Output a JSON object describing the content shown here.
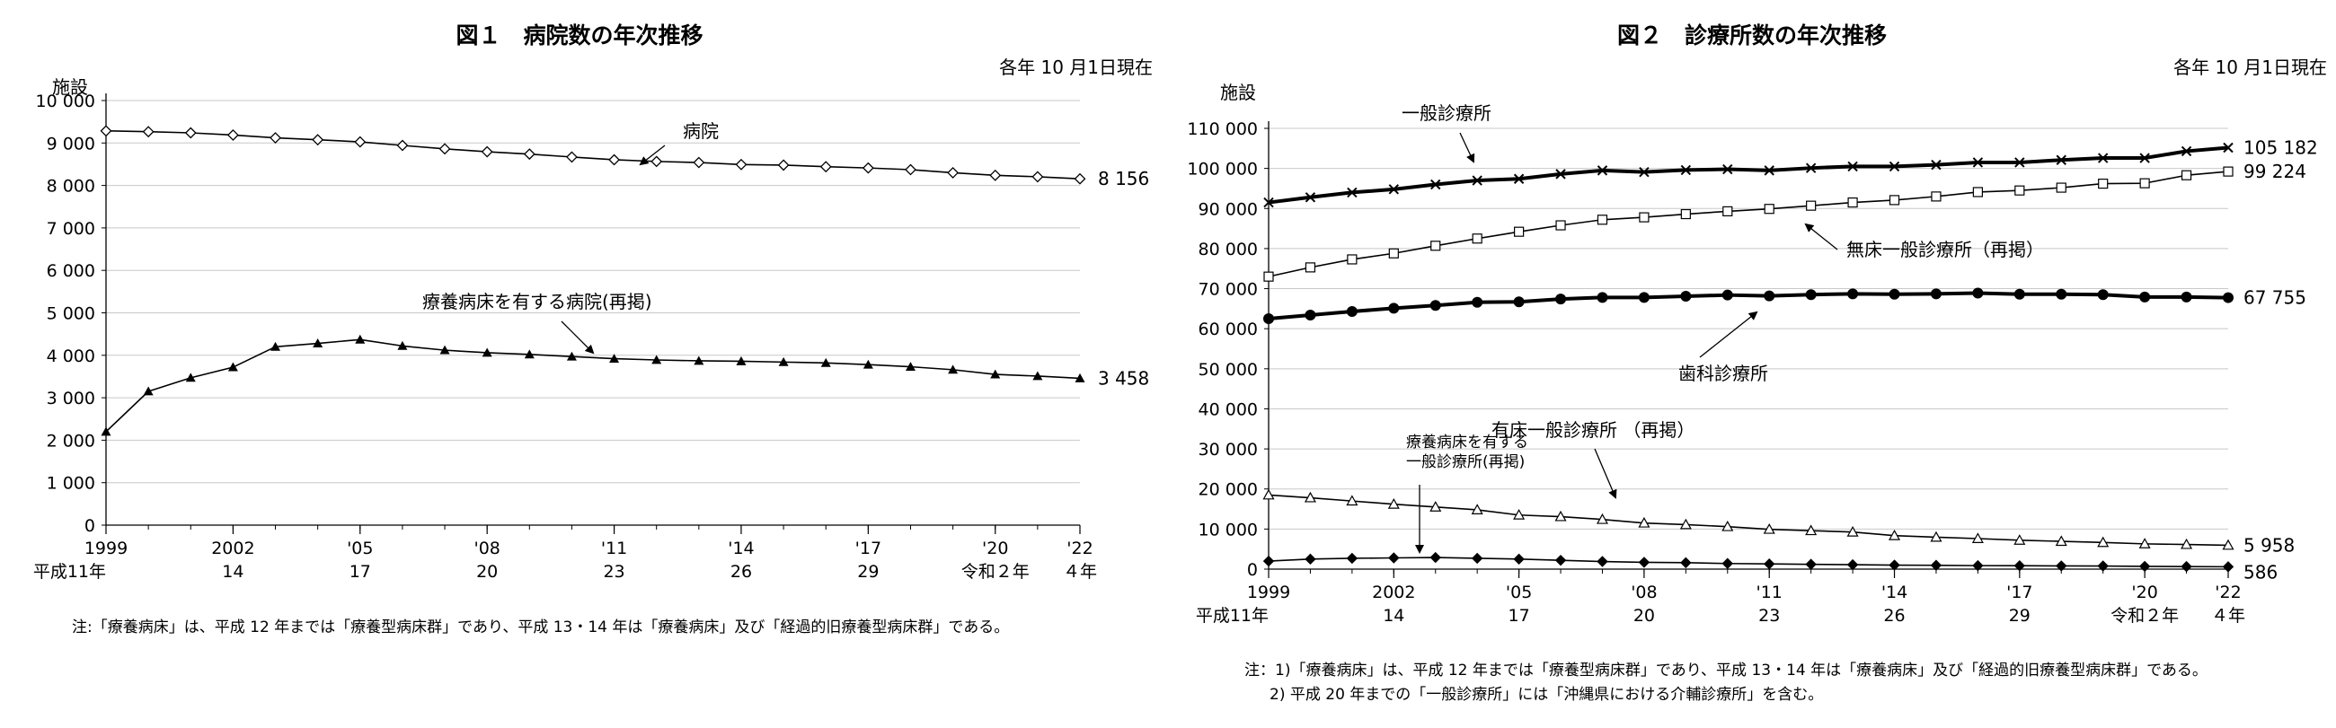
{
  "charts": [
    {
      "title": "図１　病院数の年次推移",
      "date_note": "各年 10 月1日現在",
      "y_unit": "施設",
      "note": "注:「療養病床」は、平成 12 年までは「療養型病床群」であり、平成 13・14 年は「療養病床」及び「経過的旧療養型病床群」である。",
      "x_ticks": [
        {
          "year": 1999,
          "label": "1999",
          "sub": "平成11年"
        },
        {
          "year": 2002,
          "label": "2002",
          "sub": "14"
        },
        {
          "year": 2005,
          "label": "'05",
          "sub": "17"
        },
        {
          "year": 2008,
          "label": "'08",
          "sub": "20"
        },
        {
          "year": 2011,
          "label": "'11",
          "sub": "23"
        },
        {
          "year": 2014,
          "label": "'14",
          "sub": "26"
        },
        {
          "year": 2017,
          "label": "'17",
          "sub": "29"
        },
        {
          "year": 2020,
          "label": "'20",
          "sub": "令和２年"
        },
        {
          "year": 2022,
          "label": "'22",
          "sub": "４年"
        }
      ],
      "y_ticks": [
        {
          "v": 0,
          "label": "0"
        },
        {
          "v": 1000,
          "label": "1 000"
        },
        {
          "v": 2000,
          "label": "2 000"
        },
        {
          "v": 3000,
          "label": "3 000"
        },
        {
          "v": 4000,
          "label": "4 000"
        },
        {
          "v": 5000,
          "label": "5 000"
        },
        {
          "v": 6000,
          "label": "6 000"
        },
        {
          "v": 7000,
          "label": "7 000"
        },
        {
          "v": 8000,
          "label": "8 000"
        },
        {
          "v": 9000,
          "label": "9 000"
        },
        {
          "v": 10000,
          "label": "10 000"
        }
      ],
      "annotations": [
        {
          "text": "病院",
          "series": 0,
          "year": 2011
        },
        {
          "text": "療養病床を有する病院(再掲)",
          "series": 1,
          "year": 2010
        }
      ]
    },
    {
      "title": "図２　診療所数の年次推移",
      "date_note": "各年 10 月1日現在",
      "y_unit": "施設",
      "note_lines": [
        "注：1)「療養病床」は、平成 12 年までは「療養型病床群」であり、平成 13・14 年は「療養病床」及び「経過的旧療養型病床群」である。",
        "2) 平成 20 年までの「一般診療所」には「沖縄県における介輔診療所」を含む。"
      ],
      "x_ticks": [
        {
          "year": 1999,
          "label": "1999",
          "sub": "平成11年"
        },
        {
          "year": 2002,
          "label": "2002",
          "sub": "14"
        },
        {
          "year": 2005,
          "label": "'05",
          "sub": "17"
        },
        {
          "year": 2008,
          "label": "'08",
          "sub": "20"
        },
        {
          "year": 2011,
          "label": "'11",
          "sub": "23"
        },
        {
          "year": 2014,
          "label": "'14",
          "sub": "26"
        },
        {
          "year": 2017,
          "label": "'17",
          "sub": "29"
        },
        {
          "year": 2020,
          "label": "'20",
          "sub": "令和２年"
        },
        {
          "year": 2022,
          "label": "'22",
          "sub": "４年"
        }
      ],
      "y_ticks": [
        {
          "v": 0,
          "label": "0"
        },
        {
          "v": 10000,
          "label": "10 000"
        },
        {
          "v": 20000,
          "label": "20 000"
        },
        {
          "v": 30000,
          "label": "30 000"
        },
        {
          "v": 40000,
          "label": "40 000"
        },
        {
          "v": 50000,
          "label": "50 000"
        },
        {
          "v": 60000,
          "label": "60 000"
        },
        {
          "v": 70000,
          "label": "70 000"
        },
        {
          "v": 80000,
          "label": "80 000"
        },
        {
          "v": 90000,
          "label": "90 000"
        },
        {
          "v": 100000,
          "label": "100 000"
        },
        {
          "v": 110000,
          "label": "110 000"
        }
      ],
      "annotations": [
        {
          "text": "一般診療所",
          "series": 0,
          "year": 2004
        },
        {
          "text": "無床一般診療所（再掲）",
          "series": 1,
          "year": 2012
        },
        {
          "text": "歯科診療所",
          "series": 2,
          "year": 2011
        },
        {
          "text": "有床一般診療所 （再掲）",
          "series": 3,
          "year": 2010
        },
        {
          "text": "療養病床を有する\n一般診療所(再掲)",
          "series": 4,
          "year": 2003
        }
      ]
    }
  ],
  "chart_data": [
    {
      "type": "line",
      "title": "図１　病院数の年次推移",
      "ylabel": "施設",
      "xlabel": "",
      "x": [
        1999,
        2000,
        2001,
        2002,
        2003,
        2004,
        2005,
        2006,
        2007,
        2008,
        2009,
        2010,
        2011,
        2012,
        2013,
        2014,
        2015,
        2016,
        2017,
        2018,
        2019,
        2020,
        2021,
        2022
      ],
      "ylim": [
        0,
        10000
      ],
      "grid": true,
      "series": [
        {
          "name": "病院",
          "marker": "diamond-open",
          "values": [
            9286,
            9266,
            9239,
            9187,
            9122,
            9077,
            9026,
            8943,
            8862,
            8794,
            8739,
            8670,
            8605,
            8565,
            8540,
            8493,
            8480,
            8442,
            8412,
            8372,
            8300,
            8238,
            8205,
            8156
          ],
          "end_label": "8 156"
        },
        {
          "name": "療養病床を有する病院(再掲)",
          "marker": "triangle-filled",
          "values": [
            2200,
            3150,
            3470,
            3720,
            4200,
            4280,
            4370,
            4220,
            4120,
            4060,
            4020,
            3970,
            3920,
            3890,
            3870,
            3860,
            3840,
            3820,
            3780,
            3730,
            3660,
            3550,
            3510,
            3458
          ],
          "end_label": "3 458"
        }
      ]
    },
    {
      "type": "line",
      "title": "図２　診療所数の年次推移",
      "ylabel": "施設",
      "xlabel": "",
      "x": [
        1999,
        2000,
        2001,
        2002,
        2003,
        2004,
        2005,
        2006,
        2007,
        2008,
        2009,
        2010,
        2011,
        2012,
        2013,
        2014,
        2015,
        2016,
        2017,
        2018,
        2019,
        2020,
        2021,
        2022
      ],
      "ylim": [
        0,
        110000
      ],
      "grid": true,
      "series": [
        {
          "name": "一般診療所",
          "marker": "x",
          "values": [
            91500,
            92800,
            94000,
            94800,
            96000,
            97000,
            97400,
            98600,
            99500,
            99100,
            99600,
            99800,
            99500,
            100100,
            100500,
            100500,
            100900,
            101500,
            101500,
            102100,
            102600,
            102600,
            104300,
            105182
          ],
          "end_label": "105 182"
        },
        {
          "name": "無床一般診療所（再掲）",
          "marker": "square-open",
          "values": [
            73000,
            75300,
            77300,
            78800,
            80700,
            82500,
            84200,
            85800,
            87200,
            87800,
            88600,
            89300,
            89900,
            90700,
            91500,
            92100,
            93000,
            94100,
            94500,
            95200,
            96200,
            96300,
            98300,
            99224
          ],
          "end_label": "99 224"
        },
        {
          "name": "歯科診療所",
          "marker": "circle-filled",
          "values": [
            62500,
            63400,
            64300,
            65100,
            65800,
            66600,
            66700,
            67400,
            67800,
            67800,
            68100,
            68400,
            68200,
            68500,
            68700,
            68600,
            68700,
            68900,
            68600,
            68600,
            68500,
            67900,
            67900,
            67755
          ],
          "end_label": "67 755"
        },
        {
          "name": "有床一般診療所 （再掲）",
          "marker": "triangle-open",
          "values": [
            18500,
            17800,
            17000,
            16200,
            15500,
            14800,
            13500,
            13100,
            12400,
            11500,
            11100,
            10600,
            9930,
            9600,
            9250,
            8350,
            7960,
            7620,
            7200,
            6930,
            6650,
            6300,
            6150,
            5958
          ],
          "end_label": "5 958"
        },
        {
          "name": "療養病床を有する一般診療所(再掲)",
          "marker": "diamond-filled",
          "values": [
            2000,
            2500,
            2700,
            2800,
            2900,
            2700,
            2500,
            2200,
            1900,
            1700,
            1600,
            1400,
            1300,
            1200,
            1100,
            1000,
            950,
            870,
            850,
            800,
            780,
            690,
            640,
            586
          ],
          "end_label": "586"
        }
      ]
    }
  ]
}
